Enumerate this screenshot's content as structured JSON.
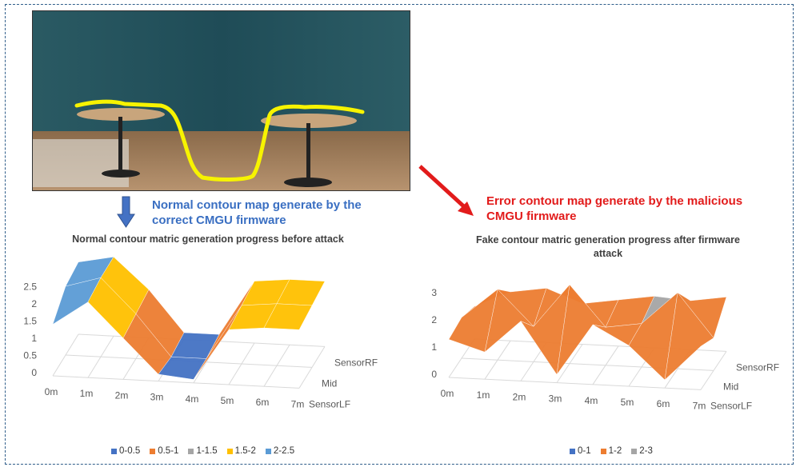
{
  "callouts": {
    "normal": "Normal contour map generate by the correct CMGU firmware",
    "normal_line1": "Normal contour map generate by the",
    "normal_line2": "correct CMGU firmware",
    "error_line1": "Error contour map generate by the malicious",
    "error_line2": "CMGU firmware"
  },
  "colors": {
    "blue_arrow": "#4472c4",
    "red_arrow": "#e21b1b",
    "trace": "#f7f300"
  },
  "chart_data": [
    {
      "type": "surface",
      "title": "Normal contour matric generation progress before attack",
      "x_ticks": [
        "0m",
        "1m",
        "2m",
        "3m",
        "4m",
        "5m",
        "6m",
        "7m"
      ],
      "y_ticks": [
        "SensorLF",
        "Mid",
        "SensorRF"
      ],
      "z_ticks": [
        "0",
        "0.5",
        "1",
        "1.5",
        "2",
        "2.5"
      ],
      "zlim": [
        0,
        2.5
      ],
      "series_rows": [
        {
          "name": "SensorLF",
          "values": [
            1.5,
            2.2,
            1.2,
            0.2,
            0.1,
            1.6,
            1.7,
            1.7
          ]
        },
        {
          "name": "Mid",
          "values": [
            2.0,
            2.3,
            1.3,
            0.1,
            0.1,
            1.7,
            1.8,
            1.8
          ]
        },
        {
          "name": "SensorRF",
          "values": [
            2.1,
            2.3,
            1.4,
            0.2,
            0.2,
            1.8,
            1.9,
            1.9
          ]
        }
      ],
      "legend": [
        {
          "label": "0-0.5",
          "color": "#4472c4"
        },
        {
          "label": "0.5-1",
          "color": "#ed7d31"
        },
        {
          "label": "1-1.5",
          "color": "#a5a5a5"
        },
        {
          "label": "1.5-2",
          "color": "#ffc000"
        },
        {
          "label": "2-2.5",
          "color": "#5b9bd5"
        }
      ]
    },
    {
      "type": "surface",
      "title": "Fake contour matric generation progress after firmware attack",
      "title_line1": "Fake contour matric generation progress after firmware",
      "title_line2": "attack",
      "x_ticks": [
        "0m",
        "1m",
        "2m",
        "3m",
        "4m",
        "5m",
        "6m",
        "7m"
      ],
      "y_ticks": [
        "SensorLF",
        "Mid",
        "SensorRF"
      ],
      "z_ticks": [
        "0",
        "1",
        "2",
        "3"
      ],
      "zlim": [
        0,
        3
      ],
      "series_rows": [
        {
          "name": "SensorLF",
          "values": [
            1.4,
            1.0,
            2.2,
            0.3,
            2.2,
            1.5,
            0.3,
            1.6
          ]
        },
        {
          "name": "Mid",
          "values": [
            1.5,
            2.6,
            1.3,
            2.9,
            1.4,
            1.6,
            2.8,
            1.2
          ]
        },
        {
          "name": "SensorRF",
          "values": [
            1.2,
            1.8,
            2.0,
            1.5,
            1.7,
            1.9,
            1.8,
            2.0
          ]
        }
      ],
      "legend": [
        {
          "label": "0-1",
          "color": "#4472c4"
        },
        {
          "label": "1-2",
          "color": "#ed7d31"
        },
        {
          "label": "2-3",
          "color": "#a5a5a5"
        }
      ]
    }
  ]
}
